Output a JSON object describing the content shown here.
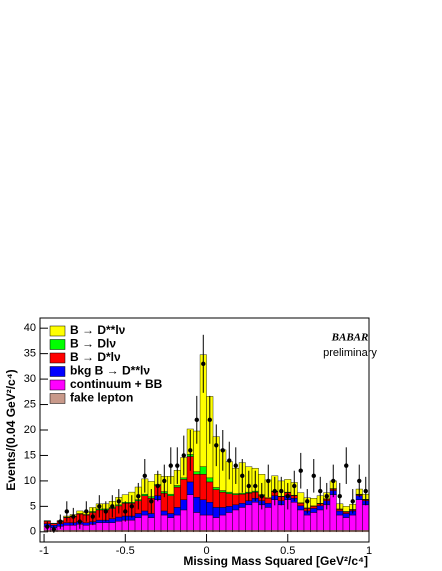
{
  "chart_data": {
    "type": "histogram",
    "xlabel": "Missing Mass Squared [GeV²/c⁴]",
    "ylabel": "Events/(0.04 GeV²/c⁴)",
    "annotations": [
      "BABAR",
      "preliminary"
    ],
    "xlim": [
      -1.025,
      1.0
    ],
    "ylim": [
      -2,
      42
    ],
    "xticks": [
      -1,
      -0.5,
      0,
      0.5,
      1
    ],
    "yticks": [
      0,
      5,
      10,
      15,
      20,
      25,
      30,
      35,
      40
    ],
    "bins": [
      -1,
      -0.96,
      -0.92,
      -0.88,
      -0.84,
      -0.8,
      -0.76,
      -0.72,
      -0.68,
      -0.64,
      -0.6,
      -0.56,
      -0.52,
      -0.48,
      -0.44,
      -0.4,
      -0.36,
      -0.32,
      -0.28,
      -0.24,
      -0.2,
      -0.16,
      -0.12,
      -0.08,
      -0.04,
      0,
      0.04,
      0.08,
      0.12,
      0.16,
      0.2,
      0.24,
      0.28,
      0.32,
      0.36,
      0.4,
      0.44,
      0.48,
      0.52,
      0.56,
      0.6,
      0.64,
      0.68,
      0.72,
      0.76,
      0.8,
      0.84,
      0.88,
      0.92,
      0.96,
      1
    ],
    "series": [
      {
        "name": "B → D**lν",
        "color": "#ffff00",
        "values": [
          0,
          0,
          0,
          0.2,
          0.3,
          0.5,
          0.5,
          0.8,
          1,
          1,
          1.2,
          1.5,
          1.5,
          2,
          2.5,
          3,
          3,
          2,
          3,
          3.5,
          3,
          4,
          5,
          8,
          22,
          16,
          10,
          8,
          6,
          5,
          6,
          5,
          4.5,
          4,
          3.5,
          3,
          3,
          2.5,
          2.5,
          2,
          2,
          1.5,
          1.5,
          1.2,
          1.5,
          1,
          1,
          1,
          1,
          1
        ]
      },
      {
        "name": "B → Dlν",
        "color": "#00ff00",
        "values": [
          0.1,
          0.1,
          0.1,
          0.1,
          0.1,
          0.1,
          0.1,
          0.2,
          0.2,
          0.2,
          0.2,
          0.2,
          0.2,
          0.2,
          0.2,
          0.3,
          0.3,
          0.2,
          0.3,
          0.3,
          0.3,
          0.3,
          0.4,
          0.5,
          1.5,
          0.8,
          0.4,
          0.3,
          0.3,
          0.2,
          0.2,
          0.2,
          0.2,
          0.2,
          0.1,
          0.1,
          0.1,
          0.1,
          0.1,
          0.1,
          0.1,
          0.1,
          0.1,
          0.1,
          0.1,
          0.1,
          0.1,
          0.1,
          0.1,
          0.1
        ]
      },
      {
        "name": "B → D*lν",
        "color": "#ff0000",
        "values": [
          0.5,
          0.3,
          0.5,
          1,
          1.2,
          1.5,
          1.5,
          1.8,
          2,
          2,
          2,
          2.2,
          2.5,
          2.5,
          2.5,
          3,
          3,
          2,
          3.5,
          3.5,
          4,
          4,
          5,
          4.5,
          5,
          4,
          3.5,
          3,
          2.5,
          2,
          1.8,
          1.5,
          1.2,
          1,
          1,
          0.8,
          0.8,
          0.6,
          0.5,
          0.5,
          0.5,
          0.4,
          0.4,
          0.3,
          0.3,
          0.3,
          0.3,
          0.2,
          0.2,
          0.2
        ]
      },
      {
        "name": "bkg B → D**lν",
        "color": "#0000ff",
        "values": [
          0.5,
          0.5,
          0.5,
          0.5,
          0.5,
          0.5,
          0.5,
          0.5,
          0.5,
          0.5,
          0.8,
          0.8,
          0.8,
          0.8,
          0.8,
          0.8,
          0.8,
          0.8,
          0.8,
          0.8,
          1.5,
          2,
          2.5,
          3,
          3,
          2.5,
          2,
          1.5,
          1.2,
          1,
          0.8,
          0.8,
          0.8,
          0.8,
          0.8,
          0.8,
          0.8,
          0.8,
          0.8,
          0.8,
          0.8,
          0.8,
          0.8,
          0.8,
          0.8,
          0.8,
          0.8,
          0.8,
          0.8,
          0.8
        ]
      },
      {
        "name": "continuum + BB",
        "color": "#ff00ff",
        "values": [
          0.8,
          0.5,
          0.8,
          1,
          1,
          1.2,
          1,
          1.2,
          1.5,
          1.5,
          1.5,
          1.8,
          2,
          2,
          2.5,
          3,
          2.5,
          6,
          3,
          2.5,
          3,
          4,
          7,
          3.5,
          3,
          3,
          2.5,
          3,
          3.5,
          4,
          4.5,
          5,
          5.5,
          5,
          4.5,
          6,
          5,
          6,
          5.5,
          4,
          3,
          3.5,
          4,
          5,
          7,
          3,
          2.5,
          3,
          6,
          5
        ]
      },
      {
        "name": "fake lepton",
        "color": "#c8998a",
        "values": [
          0.3,
          0.3,
          0.3,
          0.3,
          0.3,
          0.3,
          0.3,
          0.3,
          0.3,
          0.3,
          0.3,
          0.3,
          0.3,
          0.3,
          0.3,
          0.3,
          0.3,
          0.3,
          0.3,
          0.3,
          0.3,
          0.3,
          0.3,
          0.3,
          0.3,
          0.3,
          0.3,
          0.3,
          0.3,
          0.3,
          0.3,
          0.3,
          0.3,
          0.3,
          0.3,
          0.3,
          0.3,
          0.3,
          0.3,
          0.3,
          0.3,
          0.3,
          0.3,
          0.3,
          0.3,
          0.3,
          0.3,
          0.3,
          0.3,
          0.3
        ]
      }
    ],
    "data": {
      "color": "#000000",
      "values": [
        1,
        0.5,
        2,
        4,
        3,
        2,
        4,
        3,
        5,
        4,
        5,
        6,
        4,
        5,
        7,
        11,
        6,
        9,
        10,
        13,
        13,
        15,
        16,
        22,
        33,
        22,
        17,
        16,
        14,
        13,
        11,
        9,
        9,
        7,
        10,
        8,
        8,
        7,
        9,
        12,
        6,
        11,
        8,
        7,
        10,
        7,
        13,
        6,
        10,
        8
      ],
      "errors": [
        1,
        0.7,
        1.4,
        2,
        1.7,
        1.4,
        2,
        1.7,
        2.2,
        2,
        2.2,
        2.4,
        2,
        2.2,
        2.6,
        3.3,
        2.4,
        3,
        3.2,
        3.6,
        3.6,
        3.9,
        4,
        4.7,
        5.7,
        4.7,
        4.1,
        4,
        3.7,
        3.6,
        3.3,
        3,
        3,
        2.6,
        3.2,
        2.8,
        2.8,
        2.6,
        3,
        3.5,
        2.4,
        3.3,
        2.8,
        2.6,
        3.2,
        2.6,
        3.6,
        2.4,
        3.2,
        2.8
      ]
    }
  }
}
